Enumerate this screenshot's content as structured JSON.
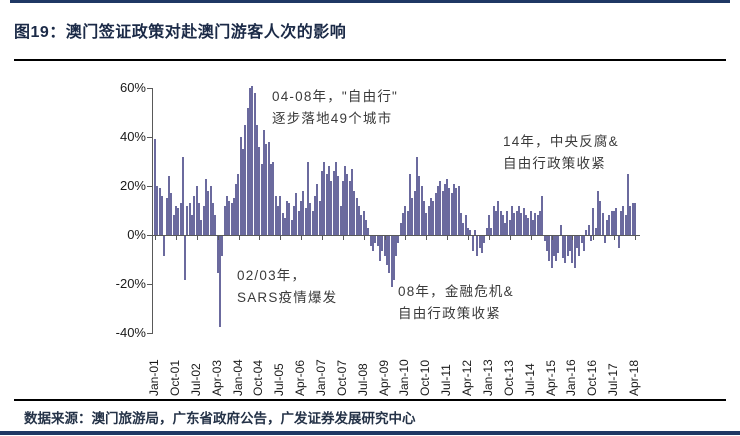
{
  "figure": {
    "title": "图19：澳门签证政策对赴澳门游客人次的影响",
    "source": "数据来源：澳门旅游局，广东省政府公告，广发证券发展研究中心"
  },
  "colors": {
    "bar": "#6b6a9e",
    "title_navy": "#1b2a47",
    "rule_navy": "#1f3864",
    "rule_black": "#000000",
    "axis_gray": "#595959"
  },
  "chart_data": {
    "type": "bar",
    "title": "",
    "xlabel": "",
    "ylabel": "",
    "unit": "YoY growth %, monthly",
    "start_month": "Jan-01",
    "end_month": "Apr-18",
    "grid": "off",
    "legend": "none",
    "y_axis": {
      "min": -40,
      "max": 60,
      "step": 20,
      "ticks": [
        "60%",
        "40%",
        "20%",
        "0%",
        "-20%",
        "-40%"
      ]
    },
    "x_tick_interval_months": 9,
    "x_tick_labels": [
      "Jan-01",
      "Oct-01",
      "Jul-02",
      "Apr-03",
      "Jan-04",
      "Oct-04",
      "Jul-05",
      "Apr-06",
      "Jan-07",
      "Oct-07",
      "Jul-08",
      "Apr-09",
      "Jan-10",
      "Oct-10",
      "Jul-11",
      "Apr-12",
      "Jan-13",
      "Oct-13",
      "Jul-14",
      "Apr-15",
      "Jan-16",
      "Oct-16",
      "Jul-17",
      "Apr-18"
    ],
    "values": [
      39,
      20,
      19,
      16,
      -8,
      15,
      24,
      17,
      8,
      12,
      11,
      13,
      32,
      -18,
      12,
      13,
      8,
      16,
      20,
      13,
      6,
      12,
      23,
      18,
      20,
      13,
      8,
      -15,
      -37,
      -8,
      12,
      16,
      14,
      13,
      15,
      21,
      25,
      40,
      35,
      45,
      52,
      60,
      61,
      58,
      45,
      36,
      29,
      43,
      37,
      38,
      29,
      30,
      16,
      12,
      16,
      9,
      7,
      14,
      13,
      6,
      12,
      17,
      10,
      14,
      18,
      11,
      30,
      13,
      10,
      16,
      21,
      14,
      26,
      30,
      25,
      28,
      22,
      26,
      30,
      24,
      12,
      22,
      28,
      25,
      22,
      27,
      18,
      15,
      12,
      8,
      10,
      6,
      3,
      -4,
      -6,
      -3,
      -4,
      -10,
      -6,
      -8,
      -12,
      -15,
      -21,
      -18,
      -8,
      -3,
      5,
      9,
      12,
      10,
      25,
      15,
      18,
      32,
      24,
      20,
      14,
      9,
      12,
      15,
      14,
      17,
      20,
      22,
      18,
      21,
      23,
      19,
      17,
      21,
      19,
      20,
      9,
      5,
      8,
      3,
      2,
      -6,
      2,
      -8,
      -5,
      -7,
      -3,
      3,
      8,
      3,
      12,
      10,
      14,
      10,
      8,
      5,
      10,
      6,
      12,
      9,
      10,
      12,
      9,
      11,
      8,
      7,
      10,
      6,
      9,
      8,
      10,
      16,
      -2,
      -6,
      -10,
      -13,
      -8,
      -10,
      -7,
      4,
      -9,
      -11,
      -8,
      -6,
      -11,
      -13,
      -5,
      -8,
      -3,
      -6,
      2,
      4,
      -2,
      11,
      3,
      18,
      14,
      9,
      -3,
      6,
      8,
      10,
      10,
      11,
      -5,
      10,
      12,
      8,
      25,
      12,
      13,
      13
    ],
    "annotations": [
      {
        "lines": [
          "04-08年，\"自由行\"",
          "逐步落地49个城市"
        ]
      },
      {
        "lines": [
          "14年，中央反腐&",
          "自由行政策收紧"
        ]
      },
      {
        "lines": [
          "02/03年，",
          "SARS疫情爆发"
        ]
      },
      {
        "lines": [
          "08年，金融危机&",
          "自由行政策收紧"
        ]
      }
    ]
  }
}
